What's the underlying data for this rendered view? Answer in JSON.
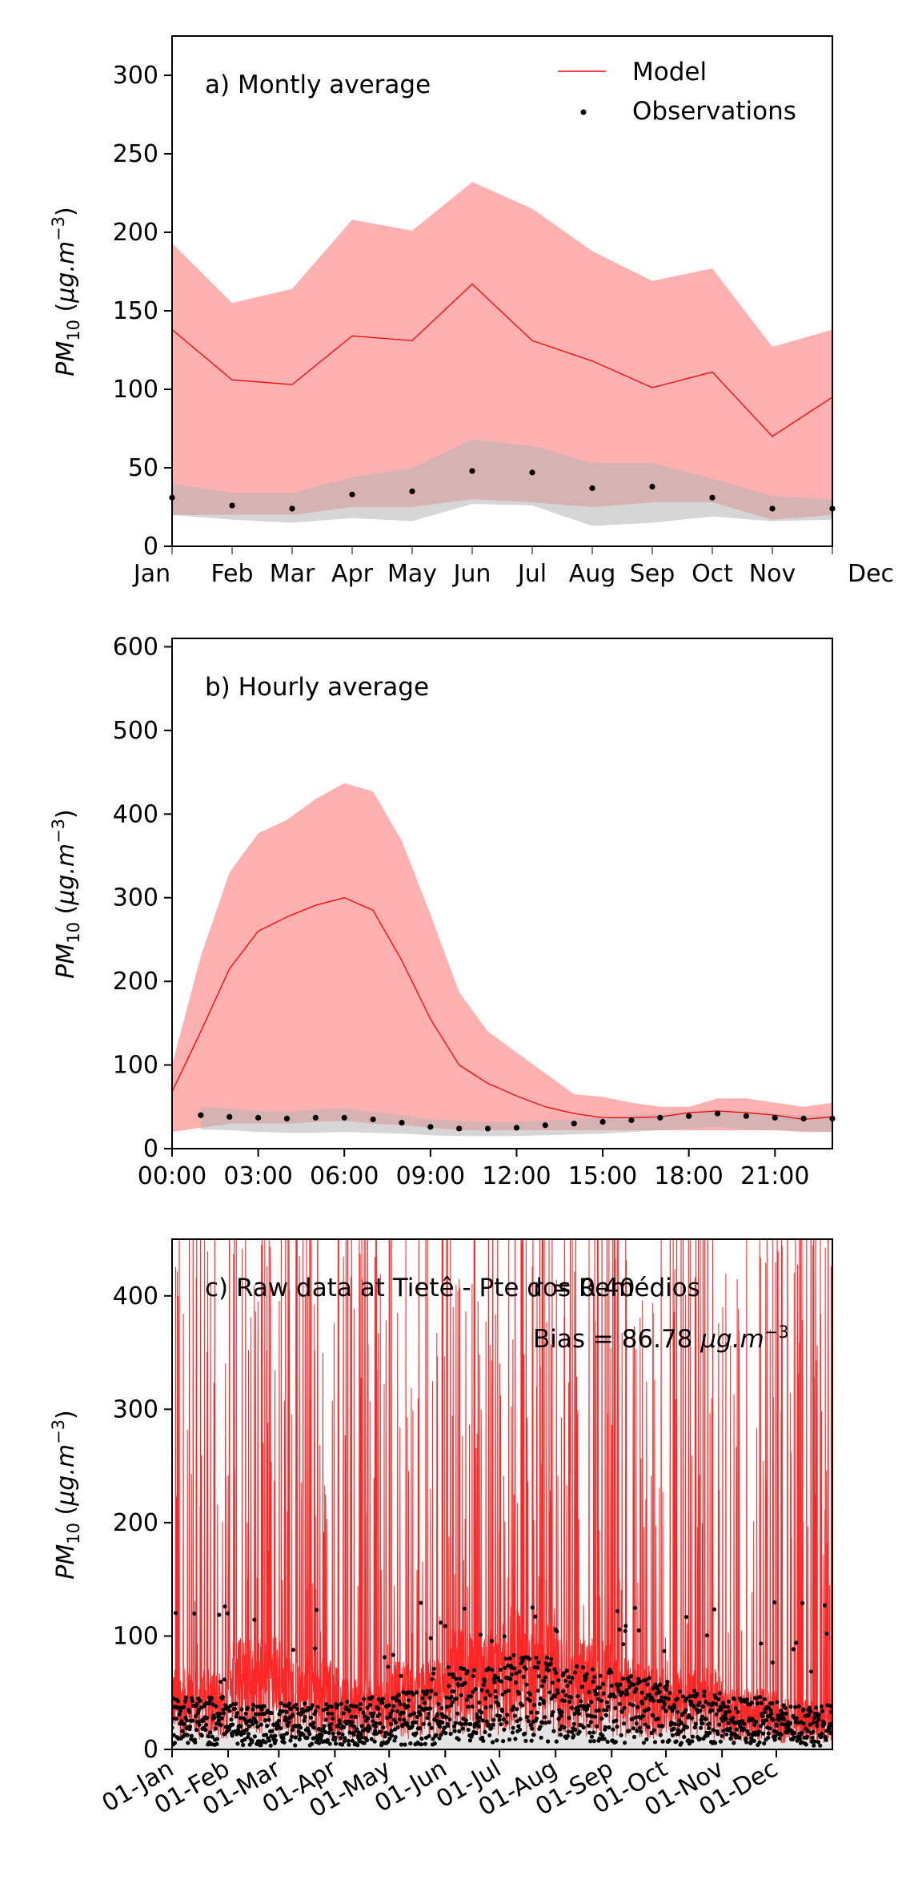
{
  "colors": {
    "model": "#ff0000",
    "model_band": "#ffb0b0",
    "obs": "#000000",
    "obs_band": "#b4b4b4"
  },
  "legend": {
    "model": "Model",
    "observations": "Observations",
    "placement": "top-right"
  },
  "chart_data": [
    {
      "type": "line",
      "annotation": "a) Montly average",
      "ylabel": "PM10 (μg.m−3)",
      "ylim": [
        0,
        325
      ],
      "yticks": [
        0,
        50,
        100,
        150,
        200,
        250,
        300
      ],
      "categories": [
        "Jan",
        "Feb",
        "Mar",
        "Apr",
        "May",
        "Jun",
        "Jul",
        "Aug",
        "Sep",
        "Oct",
        "Nov",
        "Dec"
      ],
      "series": [
        {
          "name": "Model",
          "values": [
            138,
            106,
            103,
            134,
            131,
            167,
            131,
            118,
            101,
            111,
            70,
            95
          ],
          "band_upper": [
            193,
            155,
            164,
            208,
            201,
            232,
            215,
            188,
            169,
            177,
            127,
            138
          ],
          "band_lower": [
            20,
            20,
            20,
            25,
            25,
            30,
            28,
            25,
            28,
            28,
            17,
            20
          ]
        },
        {
          "name": "Observations",
          "values": [
            31,
            26,
            24,
            33,
            35,
            48,
            47,
            37,
            38,
            31,
            24,
            24
          ],
          "band_upper": [
            40,
            34,
            34,
            44,
            50,
            68,
            64,
            53,
            53,
            43,
            32,
            30
          ],
          "band_lower": [
            20,
            17,
            15,
            18,
            16,
            27,
            26,
            13,
            15,
            19,
            16,
            17
          ]
        }
      ],
      "grid": false
    },
    {
      "type": "line",
      "annotation": "b) Hourly average",
      "ylabel": "PM10 (μg.m−3)",
      "ylim": [
        0,
        610
      ],
      "yticks": [
        0,
        100,
        200,
        300,
        400,
        500,
        600
      ],
      "x": [
        0,
        1,
        2,
        3,
        4,
        5,
        6,
        7,
        8,
        9,
        10,
        11,
        12,
        13,
        14,
        15,
        16,
        17,
        18,
        19,
        20,
        21,
        22,
        23
      ],
      "xticks": [
        "00:00",
        "03:00",
        "06:00",
        "09:00",
        "12:00",
        "15:00",
        "18:00",
        "21:00"
      ],
      "xtick_hours": [
        0,
        3,
        6,
        9,
        12,
        15,
        18,
        21
      ],
      "series": [
        {
          "name": "Model",
          "values": [
            68,
            140,
            215,
            260,
            277,
            291,
            300,
            285,
            225,
            155,
            100,
            78,
            63,
            50,
            42,
            37,
            37,
            38,
            43,
            45,
            43,
            40,
            35,
            38
          ],
          "band_upper": [
            100,
            230,
            330,
            377,
            393,
            418,
            437,
            427,
            368,
            280,
            187,
            140,
            115,
            90,
            65,
            62,
            55,
            50,
            50,
            60,
            60,
            55,
            50,
            55
          ],
          "band_lower": [
            20,
            25,
            30,
            30,
            30,
            32,
            33,
            30,
            28,
            25,
            22,
            22,
            22,
            22,
            22,
            22,
            22,
            22,
            22,
            22,
            22,
            22,
            20,
            20
          ]
        },
        {
          "name": "Observations",
          "values": [
            null,
            40,
            38,
            37,
            36,
            37,
            37,
            35,
            31,
            26,
            24,
            24,
            25,
            28,
            30,
            32,
            34,
            37,
            39,
            42,
            39,
            37,
            36,
            36
          ],
          "band_upper": [
            null,
            50,
            48,
            45,
            44,
            47,
            48,
            44,
            40,
            35,
            33,
            32,
            32,
            34,
            35,
            38,
            40,
            42,
            45,
            47,
            45,
            42,
            40,
            40
          ],
          "band_lower": [
            null,
            23,
            22,
            20,
            19,
            19,
            20,
            19,
            18,
            16,
            15,
            15,
            15,
            16,
            17,
            18,
            20,
            22,
            24,
            26,
            23,
            22,
            21,
            20
          ]
        }
      ],
      "grid": false
    },
    {
      "type": "line",
      "annotation": "c) Raw data at  Tietê - Pte dos Remédios",
      "stat_r": "r = 0.40",
      "stat_bias": "Bias = 86.78 μg.m−3",
      "ylabel": "PM10 (μg.m−3)",
      "ylim": [
        0,
        450
      ],
      "yticks": [
        0,
        100,
        200,
        300,
        400
      ],
      "xticks": [
        "01-Jan",
        "01-Feb",
        "01-Mar",
        "01-Apr",
        "01-May",
        "01-Jun",
        "01-Jul",
        "01-Aug",
        "01-Sep",
        "01-Oct",
        "01-Nov",
        "01-Dec"
      ],
      "xtick_days": [
        0,
        31,
        59,
        90,
        120,
        151,
        181,
        212,
        243,
        273,
        304,
        334
      ],
      "xlim_days": [
        0,
        365
      ],
      "series": [
        {
          "name": "Model",
          "daily_typical": [
            40,
            55,
            45,
            35,
            45,
            60,
            70,
            55,
            45,
            40,
            30,
            25
          ],
          "peak_max": 450
        },
        {
          "name": "Observations",
          "daily_typical": [
            25,
            22,
            22,
            25,
            28,
            40,
            45,
            40,
            35,
            28,
            25,
            22
          ],
          "peak_max": 130
        }
      ],
      "grid": false
    }
  ]
}
